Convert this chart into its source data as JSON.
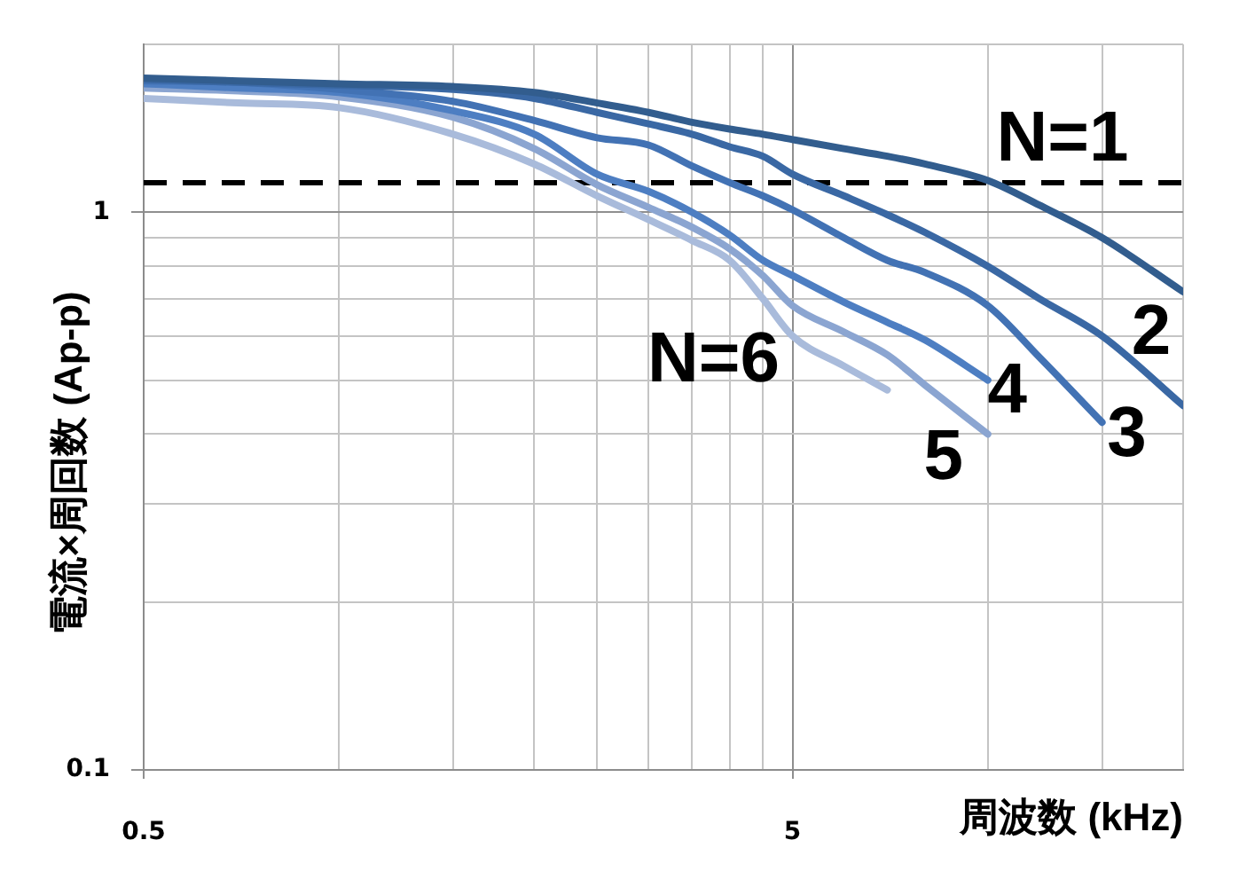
{
  "chart_data": {
    "type": "line",
    "xlabel": "周波数 (kHz)",
    "ylabel": "電流×周回数 (Ap-p)",
    "x": [
      0.5,
      0.7,
      1,
      1.5,
      2,
      2.5,
      3,
      3.5,
      4,
      4.5,
      5,
      6,
      7,
      8,
      10,
      12,
      15,
      20
    ],
    "series": [
      {
        "name": "N=1",
        "color": "#325d8e",
        "values": [
          1.74,
          1.72,
          1.7,
          1.68,
          1.64,
          1.57,
          1.51,
          1.45,
          1.41,
          1.38,
          1.35,
          1.3,
          1.26,
          1.22,
          1.14,
          1.03,
          0.9,
          0.72
        ]
      },
      {
        "name": "2",
        "color": "#3a68a4",
        "values": [
          1.73,
          1.71,
          1.69,
          1.66,
          1.6,
          1.51,
          1.44,
          1.38,
          1.31,
          1.26,
          1.17,
          1.07,
          0.99,
          0.92,
          0.8,
          0.7,
          0.6,
          0.45
        ]
      },
      {
        "name": "3",
        "color": "#4272b4",
        "values": [
          1.72,
          1.71,
          1.66,
          1.58,
          1.46,
          1.36,
          1.32,
          1.21,
          1.13,
          1.07,
          1.01,
          0.9,
          0.82,
          0.78,
          0.68,
          0.55,
          0.42,
          null
        ]
      },
      {
        "name": "4",
        "color": "#4d7ec2",
        "values": [
          1.7,
          1.67,
          1.64,
          1.52,
          1.38,
          1.17,
          1.09,
          1.0,
          0.91,
          0.82,
          0.77,
          0.69,
          0.635,
          0.59,
          0.5,
          null,
          null,
          null
        ]
      },
      {
        "name": "5",
        "color": "#8ba5d1",
        "values": [
          1.67,
          1.65,
          1.61,
          1.48,
          1.3,
          1.12,
          1.02,
          0.94,
          0.86,
          0.77,
          0.68,
          0.61,
          0.555,
          0.49,
          0.4,
          null,
          null,
          null
        ]
      },
      {
        "name": "N=6",
        "color": "#a9bbdb",
        "values": [
          1.6,
          1.57,
          1.54,
          1.38,
          1.22,
          1.07,
          0.97,
          0.89,
          0.82,
          0.7,
          0.6,
          0.53,
          0.48,
          null,
          null,
          null,
          null,
          null
        ]
      }
    ],
    "xlim": [
      0.5,
      20
    ],
    "xticks": [
      0.5,
      {
        "value": 1,
        "label": null
      },
      {
        "value": 1.5,
        "label": null
      },
      {
        "value": 2,
        "label": null
      },
      {
        "value": 2.5,
        "label": null
      },
      {
        "value": 3,
        "label": null
      },
      {
        "value": 3.5,
        "label": null
      },
      {
        "value": 4,
        "label": null
      },
      {
        "value": 4.5,
        "label": null
      },
      5,
      {
        "value": 10,
        "label": null
      },
      {
        "value": 15,
        "label": null
      },
      {
        "value": 20,
        "label": null
      }
    ],
    "ylim": [
      0.1,
      2
    ],
    "yticks": [
      0.1,
      {
        "value": 0.2,
        "label": null
      },
      {
        "value": 0.3,
        "label": null
      },
      {
        "value": 0.4,
        "label": null
      },
      {
        "value": 0.5,
        "label": null
      },
      {
        "value": 0.6,
        "label": null
      },
      {
        "value": 0.7,
        "label": null
      },
      {
        "value": 0.8,
        "label": null
      },
      {
        "value": 0.9,
        "label": null
      },
      1,
      {
        "value": 2,
        "label": null
      }
    ],
    "log": "xy",
    "grid": true,
    "legend": false,
    "marker": "none",
    "line_style": "solid",
    "ref_lines": [
      {
        "axis": "y",
        "value": 1.13,
        "color": "#000000",
        "line_style": "dashed"
      }
    ]
  }
}
